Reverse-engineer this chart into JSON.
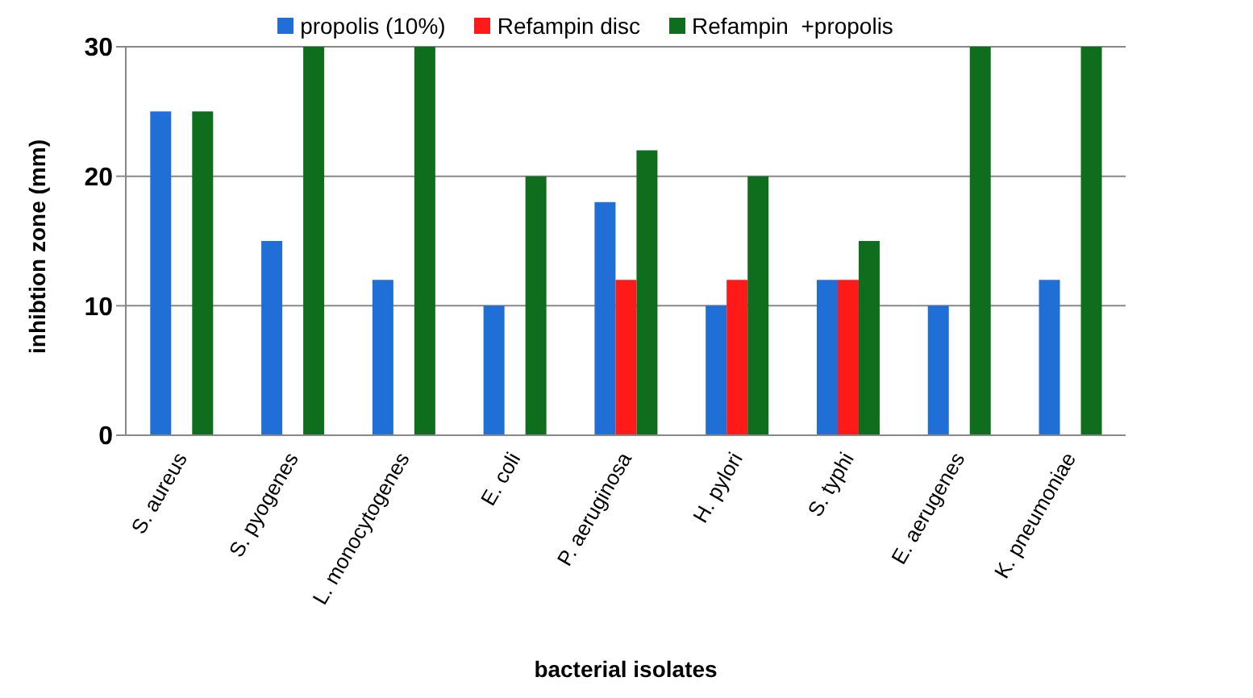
{
  "chart_data": {
    "type": "bar",
    "xlabel": "bacterial isolates",
    "ylabel": "inhibtion zone  (mm)",
    "categories": [
      "S. aureus",
      "S. pyogenes",
      "L. monocytogenes",
      "E. coli",
      "P. aeruginosa",
      "H. pylori",
      "S. typhi",
      "E. aerugenes",
      "K. pneumoniae"
    ],
    "series": [
      {
        "name": "propolis (10%)",
        "color": "#1f6fd6",
        "values": [
          25,
          15,
          12,
          10,
          18,
          10,
          12,
          10,
          12
        ]
      },
      {
        "name": "Refampin disc",
        "color": "#ff1a1a",
        "values": [
          0,
          0,
          0,
          0,
          12,
          12,
          12,
          0,
          0
        ]
      },
      {
        "name": "Refampin  +propolis",
        "color": "#0f6e1e",
        "values": [
          25,
          30,
          30,
          20,
          22,
          20,
          15,
          30,
          30
        ]
      }
    ],
    "ylim": [
      0,
      30
    ],
    "yticks": [
      0,
      10,
      20,
      30
    ],
    "grid": "y",
    "legend": "top"
  }
}
